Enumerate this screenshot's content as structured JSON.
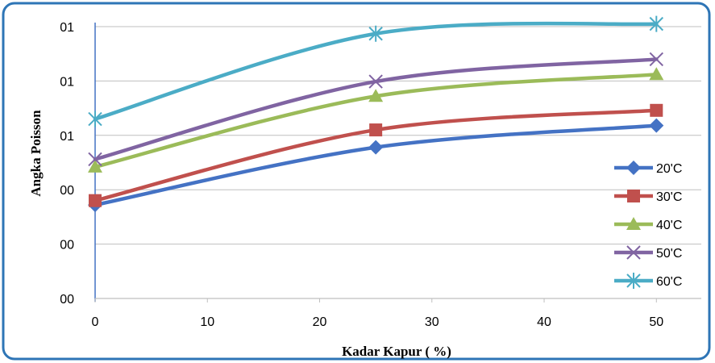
{
  "colors": {
    "frame": "#2E75B6",
    "grid": "#BFBFBF",
    "axis": "#4472C4"
  },
  "chart_data": {
    "type": "line",
    "title": "",
    "xlabel": "Kadar Kapur ( %)",
    "ylabel": "Angka Poisson",
    "x": [
      0,
      25,
      50
    ],
    "xlim": [
      0,
      54
    ],
    "x_ticks": [
      0,
      10,
      20,
      30,
      40,
      50
    ],
    "x_tick_labels": [
      "0",
      "10",
      "20",
      "30",
      "40",
      "50"
    ],
    "ylim": [
      0,
      5
    ],
    "y_ticks": [
      0,
      1,
      2,
      3,
      4,
      5
    ],
    "y_tick_labels": [
      "00",
      "00",
      "00",
      "01",
      "01",
      "01"
    ],
    "grid": true,
    "smooth": true,
    "legend_position": "right",
    "series": [
      {
        "name": "20'C",
        "color": "#4472C4",
        "marker": "diamond",
        "values": [
          1.72,
          2.78,
          3.18
        ]
      },
      {
        "name": "30'C",
        "color": "#C0504D",
        "marker": "square",
        "values": [
          1.8,
          3.1,
          3.46
        ]
      },
      {
        "name": "40'C",
        "color": "#9BBB59",
        "marker": "triangle",
        "values": [
          2.42,
          3.72,
          4.12
        ]
      },
      {
        "name": "50'C",
        "color": "#8064A2",
        "marker": "x",
        "values": [
          2.56,
          3.99,
          4.4
        ]
      },
      {
        "name": "60'C",
        "color": "#4BACC6",
        "marker": "star",
        "values": [
          3.3,
          4.87,
          5.05
        ]
      }
    ]
  }
}
